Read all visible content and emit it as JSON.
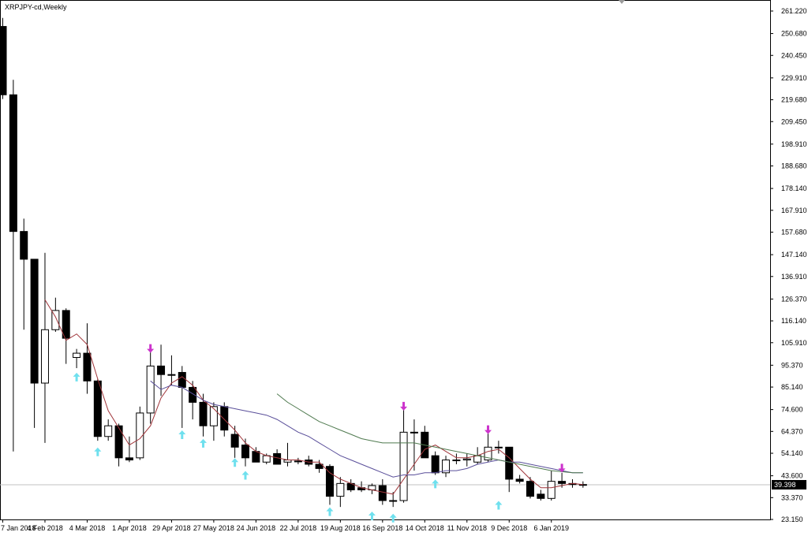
{
  "window": {
    "title": "XRPJPY-cd,Weekly"
  },
  "colors": {
    "background": "#ffffff",
    "frame": "#000000",
    "bull_fill": "#ffffff",
    "bear_fill": "#000000",
    "ma_fast": "#a0353a",
    "ma_mid": "#5a4f9a",
    "ma_slow": "#4f7a4f",
    "up_arrow": "#6fe0ee",
    "down_arrow": "#cc33cc",
    "price_line": "#c0c0c0",
    "price_tag_bg": "#000000"
  },
  "current_price": {
    "value": 39.398,
    "label": "39.398"
  },
  "chart_data": {
    "type": "candlestick",
    "title": "XRPJPY-cd,Weekly",
    "ylim": [
      23.15,
      261.22
    ],
    "y_ticks": [
      "261.220",
      "250.680",
      "240.450",
      "229.910",
      "219.680",
      "209.450",
      "198.910",
      "188.680",
      "178.140",
      "167.910",
      "157.680",
      "147.140",
      "136.910",
      "126.370",
      "116.140",
      "105.910",
      "95.370",
      "85.140",
      "74.600",
      "64.370",
      "54.140",
      "43.600",
      "33.370",
      "23.150"
    ],
    "x_ticks": [
      {
        "label": "7 Jan 2018",
        "index": 0
      },
      {
        "label": "4 Feb 2018",
        "index": 4
      },
      {
        "label": "4 Mar 2018",
        "index": 8
      },
      {
        "label": "1 Apr 2018",
        "index": 12
      },
      {
        "label": "29 Apr 2018",
        "index": 16
      },
      {
        "label": "27 May 2018",
        "index": 20
      },
      {
        "label": "24 Jun 2018",
        "index": 24
      },
      {
        "label": "22 Jul 2018",
        "index": 28
      },
      {
        "label": "19 Aug 2018",
        "index": 32
      },
      {
        "label": "16 Sep 2018",
        "index": 36
      },
      {
        "label": "14 Oct 2018",
        "index": 40
      },
      {
        "label": "11 Nov 2018",
        "index": 44
      },
      {
        "label": "9 Dec 2018",
        "index": 48
      },
      {
        "label": "6 Jan 2019",
        "index": 52
      }
    ],
    "candles": [
      {
        "o": 254.0,
        "h": 258.0,
        "l": 220.0,
        "c": 222.0
      },
      {
        "o": 222.0,
        "h": 229.0,
        "l": 55.0,
        "c": 158.0
      },
      {
        "o": 158.0,
        "h": 164.0,
        "l": 112.0,
        "c": 145.0
      },
      {
        "o": 145.0,
        "h": 145.0,
        "l": 66.0,
        "c": 87.0
      },
      {
        "o": 87.0,
        "h": 148.0,
        "l": 59.0,
        "c": 112.0
      },
      {
        "o": 112.0,
        "h": 127.0,
        "l": 111.0,
        "c": 121.0
      },
      {
        "o": 121.0,
        "h": 122.0,
        "l": 96.0,
        "c": 108.0
      },
      {
        "o": 99.0,
        "h": 103.0,
        "l": 94.0,
        "c": 101.0
      },
      {
        "o": 101.0,
        "h": 115.0,
        "l": 82.0,
        "c": 88.0
      },
      {
        "o": 88.0,
        "h": 89.0,
        "l": 60.0,
        "c": 62.0
      },
      {
        "o": 62.0,
        "h": 70.0,
        "l": 60.0,
        "c": 67.0
      },
      {
        "o": 67.0,
        "h": 68.0,
        "l": 48.0,
        "c": 52.0
      },
      {
        "o": 52.0,
        "h": 62.0,
        "l": 50.0,
        "c": 51.0
      },
      {
        "o": 52.0,
        "h": 76.0,
        "l": 51.0,
        "c": 73.0
      },
      {
        "o": 73.0,
        "h": 103.0,
        "l": 68.0,
        "c": 95.0
      },
      {
        "o": 95.0,
        "h": 105.0,
        "l": 81.0,
        "c": 91.0
      },
      {
        "o": 91.0,
        "h": 100.0,
        "l": 86.0,
        "c": 91.0
      },
      {
        "o": 92.0,
        "h": 95.0,
        "l": 66.0,
        "c": 85.0
      },
      {
        "o": 85.0,
        "h": 88.0,
        "l": 70.0,
        "c": 78.0
      },
      {
        "o": 78.0,
        "h": 82.0,
        "l": 62.0,
        "c": 67.0
      },
      {
        "o": 67.0,
        "h": 78.0,
        "l": 60.0,
        "c": 76.0
      },
      {
        "o": 76.0,
        "h": 78.0,
        "l": 62.0,
        "c": 65.0
      },
      {
        "o": 63.0,
        "h": 67.0,
        "l": 52.0,
        "c": 57.0
      },
      {
        "o": 58.0,
        "h": 61.0,
        "l": 48.0,
        "c": 52.0
      },
      {
        "o": 55.0,
        "h": 57.0,
        "l": 50.0,
        "c": 50.0
      },
      {
        "o": 50.0,
        "h": 54.0,
        "l": 49.0,
        "c": 53.0
      },
      {
        "o": 54.0,
        "h": 56.0,
        "l": 49.0,
        "c": 49.0
      },
      {
        "o": 50.0,
        "h": 59.0,
        "l": 48.0,
        "c": 51.0
      },
      {
        "o": 50.5,
        "h": 52.0,
        "l": 49.0,
        "c": 50.5
      },
      {
        "o": 51.0,
        "h": 53.0,
        "l": 48.0,
        "c": 49.0
      },
      {
        "o": 49.0,
        "h": 51.0,
        "l": 45.0,
        "c": 47.0
      },
      {
        "o": 48.0,
        "h": 49.0,
        "l": 30.0,
        "c": 34.0
      },
      {
        "o": 34.0,
        "h": 43.0,
        "l": 29.0,
        "c": 40.0
      },
      {
        "o": 40.0,
        "h": 42.0,
        "l": 36.0,
        "c": 37.0
      },
      {
        "o": 38.0,
        "h": 41.0,
        "l": 36.0,
        "c": 37.0
      },
      {
        "o": 37.0,
        "h": 40.0,
        "l": 35.0,
        "c": 39.0
      },
      {
        "o": 39.0,
        "h": 42.0,
        "l": 30.0,
        "c": 32.0
      },
      {
        "o": 32.0,
        "h": 36.0,
        "l": 29.0,
        "c": 32.0
      },
      {
        "o": 32.0,
        "h": 75.0,
        "l": 31.0,
        "c": 64.0
      },
      {
        "o": 64.0,
        "h": 70.0,
        "l": 46.0,
        "c": 64.0
      },
      {
        "o": 64.0,
        "h": 67.0,
        "l": 52.0,
        "c": 52.0
      },
      {
        "o": 53.0,
        "h": 55.0,
        "l": 44.0,
        "c": 45.0
      },
      {
        "o": 45.0,
        "h": 53.0,
        "l": 43.0,
        "c": 51.0
      },
      {
        "o": 51.0,
        "h": 54.0,
        "l": 49.0,
        "c": 51.0
      },
      {
        "o": 51.0,
        "h": 54.0,
        "l": 48.0,
        "c": 51.5
      },
      {
        "o": 50.0,
        "h": 57.0,
        "l": 49.0,
        "c": 53.0
      },
      {
        "o": 51.0,
        "h": 64.0,
        "l": 50.0,
        "c": 57.0
      },
      {
        "o": 57.0,
        "h": 60.0,
        "l": 54.0,
        "c": 57.0
      },
      {
        "o": 57.0,
        "h": 57.0,
        "l": 36.0,
        "c": 42.0
      },
      {
        "o": 42.0,
        "h": 44.0,
        "l": 40.0,
        "c": 41.0
      },
      {
        "o": 41.0,
        "h": 43.0,
        "l": 33.0,
        "c": 34.0
      },
      {
        "o": 35.0,
        "h": 37.0,
        "l": 32.0,
        "c": 33.0
      },
      {
        "o": 33.0,
        "h": 46.0,
        "l": 32.0,
        "c": 41.0
      },
      {
        "o": 41.0,
        "h": 45.0,
        "l": 38.0,
        "c": 40.0
      },
      {
        "o": 40.0,
        "h": 42.0,
        "l": 38.0,
        "c": 39.5
      },
      {
        "o": 39.5,
        "h": 41.0,
        "l": 38.0,
        "c": 39.4
      }
    ],
    "ma_series": [
      {
        "color_key": "ma_fast",
        "points": [
          {
            "i": 4,
            "v": 126
          },
          {
            "i": 5,
            "v": 118
          },
          {
            "i": 6,
            "v": 107
          },
          {
            "i": 7,
            "v": 110
          },
          {
            "i": 8,
            "v": 105
          },
          {
            "i": 9,
            "v": 89
          },
          {
            "i": 10,
            "v": 74
          },
          {
            "i": 11,
            "v": 66
          },
          {
            "i": 12,
            "v": 58
          },
          {
            "i": 13,
            "v": 61
          },
          {
            "i": 14,
            "v": 67
          },
          {
            "i": 15,
            "v": 80
          },
          {
            "i": 16,
            "v": 87
          },
          {
            "i": 17,
            "v": 90
          },
          {
            "i": 18,
            "v": 86
          },
          {
            "i": 19,
            "v": 79
          },
          {
            "i": 20,
            "v": 75
          },
          {
            "i": 21,
            "v": 70
          },
          {
            "i": 22,
            "v": 65
          },
          {
            "i": 23,
            "v": 59
          },
          {
            "i": 24,
            "v": 55
          },
          {
            "i": 25,
            "v": 53
          },
          {
            "i": 26,
            "v": 52
          },
          {
            "i": 27,
            "v": 51
          },
          {
            "i": 28,
            "v": 51
          },
          {
            "i": 29,
            "v": 50
          },
          {
            "i": 30,
            "v": 50
          },
          {
            "i": 31,
            "v": 45
          },
          {
            "i": 32,
            "v": 42
          },
          {
            "i": 33,
            "v": 40
          },
          {
            "i": 34,
            "v": 38
          },
          {
            "i": 35,
            "v": 37
          },
          {
            "i": 36,
            "v": 36
          },
          {
            "i": 37,
            "v": 35
          },
          {
            "i": 38,
            "v": 42
          },
          {
            "i": 39,
            "v": 49
          },
          {
            "i": 40,
            "v": 56
          },
          {
            "i": 41,
            "v": 58
          },
          {
            "i": 42,
            "v": 55
          },
          {
            "i": 43,
            "v": 52
          },
          {
            "i": 44,
            "v": 52
          },
          {
            "i": 45,
            "v": 53
          },
          {
            "i": 46,
            "v": 55
          },
          {
            "i": 47,
            "v": 56
          },
          {
            "i": 48,
            "v": 52
          },
          {
            "i": 49,
            "v": 47
          },
          {
            "i": 50,
            "v": 42
          },
          {
            "i": 51,
            "v": 38
          },
          {
            "i": 52,
            "v": 38
          },
          {
            "i": 53,
            "v": 39
          },
          {
            "i": 54,
            "v": 40
          },
          {
            "i": 55,
            "v": 39.5
          }
        ]
      },
      {
        "color_key": "ma_mid",
        "points": [
          {
            "i": 14,
            "v": 88
          },
          {
            "i": 15,
            "v": 84
          },
          {
            "i": 16,
            "v": 86
          },
          {
            "i": 17,
            "v": 85
          },
          {
            "i": 18,
            "v": 82
          },
          {
            "i": 19,
            "v": 79
          },
          {
            "i": 20,
            "v": 77
          },
          {
            "i": 21,
            "v": 76
          },
          {
            "i": 22,
            "v": 75
          },
          {
            "i": 23,
            "v": 74
          },
          {
            "i": 24,
            "v": 73
          },
          {
            "i": 25,
            "v": 72
          },
          {
            "i": 26,
            "v": 70
          },
          {
            "i": 27,
            "v": 67
          },
          {
            "i": 28,
            "v": 64
          },
          {
            "i": 29,
            "v": 62
          },
          {
            "i": 30,
            "v": 59
          },
          {
            "i": 31,
            "v": 56
          },
          {
            "i": 32,
            "v": 53
          },
          {
            "i": 33,
            "v": 51
          },
          {
            "i": 34,
            "v": 49
          },
          {
            "i": 35,
            "v": 47
          },
          {
            "i": 36,
            "v": 45
          },
          {
            "i": 37,
            "v": 43
          },
          {
            "i": 38,
            "v": 44
          },
          {
            "i": 39,
            "v": 44
          },
          {
            "i": 40,
            "v": 45
          },
          {
            "i": 41,
            "v": 45
          },
          {
            "i": 42,
            "v": 46
          },
          {
            "i": 43,
            "v": 46
          },
          {
            "i": 44,
            "v": 47
          },
          {
            "i": 45,
            "v": 49
          },
          {
            "i": 46,
            "v": 50
          },
          {
            "i": 47,
            "v": 51
          },
          {
            "i": 48,
            "v": 50
          },
          {
            "i": 49,
            "v": 50
          },
          {
            "i": 50,
            "v": 49
          },
          {
            "i": 51,
            "v": 48
          },
          {
            "i": 52,
            "v": 47
          },
          {
            "i": 53,
            "v": 46
          },
          {
            "i": 54,
            "v": 45
          },
          {
            "i": 55,
            "v": 45
          }
        ]
      },
      {
        "color_key": "ma_slow",
        "points": [
          {
            "i": 26,
            "v": 82
          },
          {
            "i": 27,
            "v": 78
          },
          {
            "i": 28,
            "v": 75
          },
          {
            "i": 29,
            "v": 72
          },
          {
            "i": 30,
            "v": 69
          },
          {
            "i": 31,
            "v": 67
          },
          {
            "i": 32,
            "v": 65
          },
          {
            "i": 33,
            "v": 63
          },
          {
            "i": 34,
            "v": 61
          },
          {
            "i": 35,
            "v": 60
          },
          {
            "i": 36,
            "v": 59
          },
          {
            "i": 37,
            "v": 59
          },
          {
            "i": 38,
            "v": 59
          },
          {
            "i": 39,
            "v": 59
          },
          {
            "i": 40,
            "v": 58
          },
          {
            "i": 41,
            "v": 57
          },
          {
            "i": 42,
            "v": 56
          },
          {
            "i": 43,
            "v": 55
          },
          {
            "i": 44,
            "v": 54
          },
          {
            "i": 45,
            "v": 53
          },
          {
            "i": 46,
            "v": 52
          },
          {
            "i": 47,
            "v": 51
          },
          {
            "i": 48,
            "v": 50
          },
          {
            "i": 49,
            "v": 49
          },
          {
            "i": 50,
            "v": 48
          },
          {
            "i": 51,
            "v": 47
          },
          {
            "i": 52,
            "v": 46
          },
          {
            "i": 53,
            "v": 45.5
          },
          {
            "i": 54,
            "v": 45
          },
          {
            "i": 55,
            "v": 45
          }
        ]
      }
    ],
    "up_arrows": [
      {
        "i": 7,
        "v": 90
      },
      {
        "i": 9,
        "v": 55
      },
      {
        "i": 17,
        "v": 63
      },
      {
        "i": 19,
        "v": 59
      },
      {
        "i": 22,
        "v": 50
      },
      {
        "i": 23,
        "v": 44
      },
      {
        "i": 31,
        "v": 27
      },
      {
        "i": 35,
        "v": 25
      },
      {
        "i": 37,
        "v": 24
      },
      {
        "i": 41,
        "v": 40
      },
      {
        "i": 47,
        "v": 30
      }
    ],
    "down_arrows": [
      {
        "i": 14,
        "v": 103
      },
      {
        "i": 38,
        "v": 76
      },
      {
        "i": 46,
        "v": 65
      },
      {
        "i": 53,
        "v": 47
      }
    ]
  }
}
